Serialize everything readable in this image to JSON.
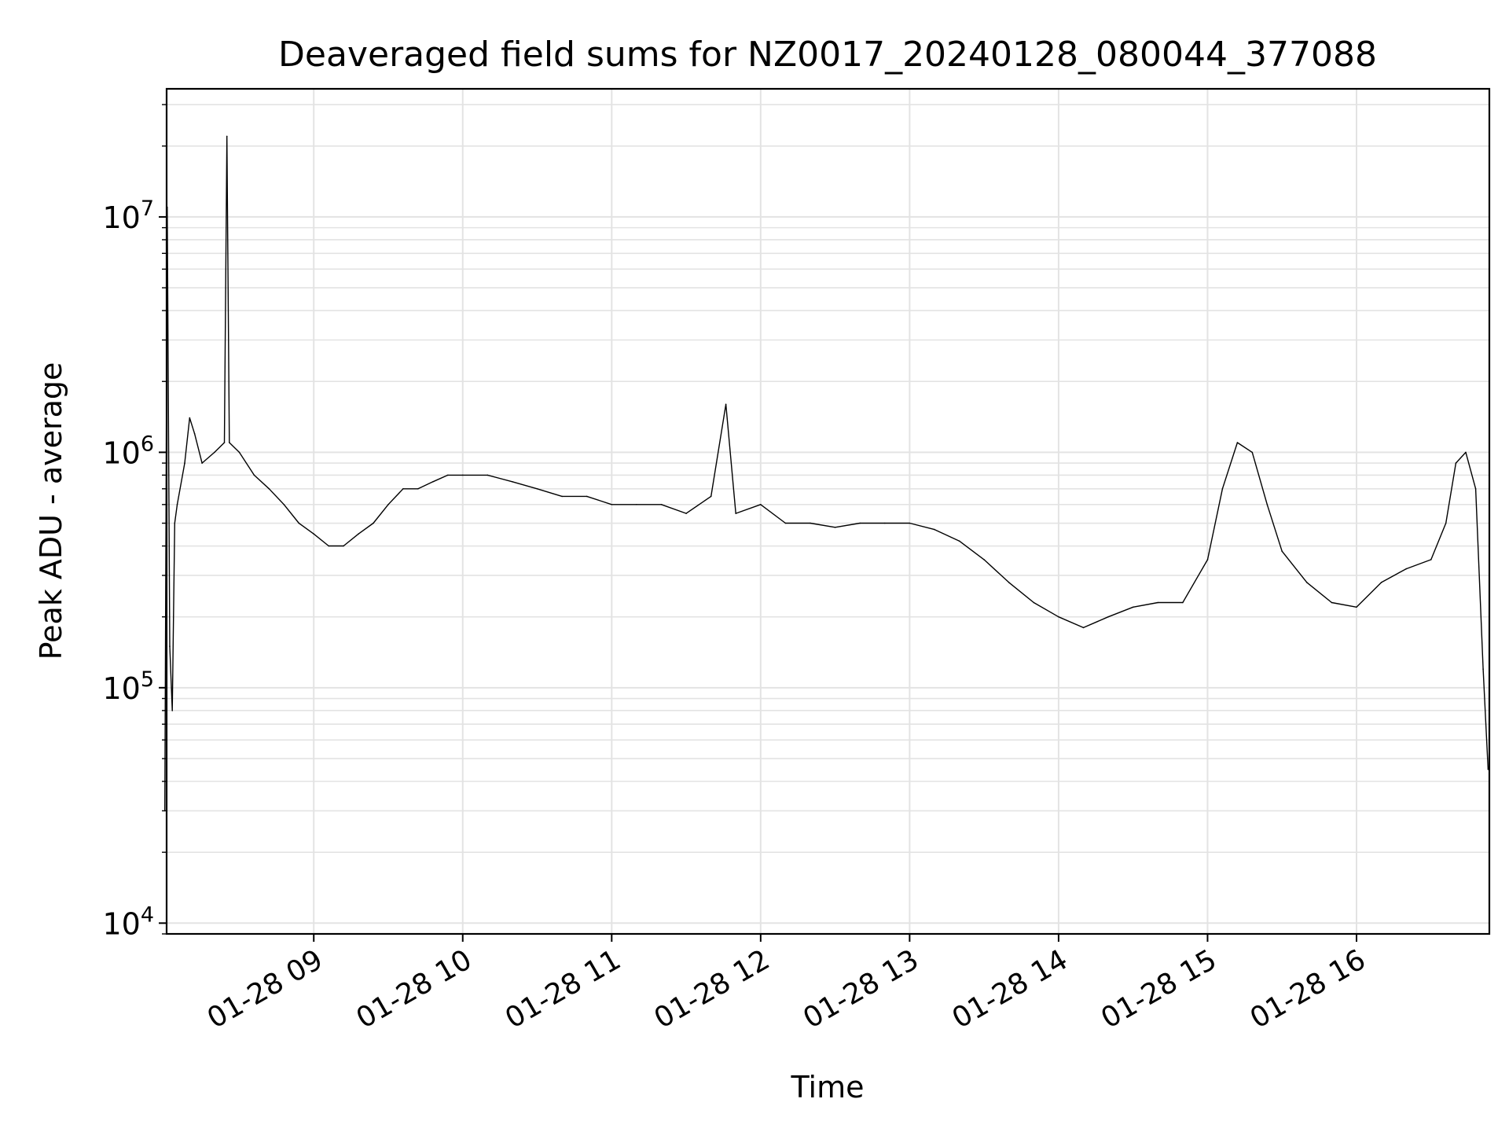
{
  "chart_data": {
    "type": "line",
    "title": "Deaveraged field sums for NZ0017_20240128_080044_377088",
    "xlabel": "Time",
    "ylabel": "Peak ADU - average",
    "y_scale": "log",
    "ylim": [
      9000,
      35000000
    ],
    "xlim": [
      "2024-01-28 08:00:44",
      "2024-01-28 16:53:30"
    ],
    "grid": true,
    "legend": "none",
    "line_color": "#000000",
    "grid_color": "#e3e3e3",
    "x_ticks": [
      {
        "value": "2024-01-28 09:00",
        "label": "01-28 09"
      },
      {
        "value": "2024-01-28 10:00",
        "label": "01-28 10"
      },
      {
        "value": "2024-01-28 11:00",
        "label": "01-28 11"
      },
      {
        "value": "2024-01-28 12:00",
        "label": "01-28 12"
      },
      {
        "value": "2024-01-28 13:00",
        "label": "01-28 13"
      },
      {
        "value": "2024-01-28 14:00",
        "label": "01-28 14"
      },
      {
        "value": "2024-01-28 15:00",
        "label": "01-28 15"
      },
      {
        "value": "2024-01-28 16:00",
        "label": "01-28 16"
      }
    ],
    "y_ticks": [
      {
        "value": 10000,
        "base": "10",
        "exp": "4"
      },
      {
        "value": 100000,
        "base": "10",
        "exp": "5"
      },
      {
        "value": 1000000,
        "base": "10",
        "exp": "6"
      },
      {
        "value": 10000000,
        "base": "10",
        "exp": "7"
      }
    ],
    "series": [
      {
        "x": [
          "2024-01-28 08:00",
          "2024-01-28 08:01",
          "2024-01-28 08:02",
          "2024-01-28 08:03",
          "2024-01-28 08:04",
          "2024-01-28 08:05",
          "2024-01-28 08:08",
          "2024-01-28 08:10",
          "2024-01-28 08:12",
          "2024-01-28 08:15",
          "2024-01-28 08:20",
          "2024-01-28 08:24",
          "2024-01-28 08:25",
          "2024-01-28 08:26",
          "2024-01-28 08:30",
          "2024-01-28 08:36",
          "2024-01-28 08:42",
          "2024-01-28 08:48",
          "2024-01-28 08:54",
          "2024-01-28 09:00",
          "2024-01-28 09:06",
          "2024-01-28 09:12",
          "2024-01-28 09:18",
          "2024-01-28 09:24",
          "2024-01-28 09:30",
          "2024-01-28 09:36",
          "2024-01-28 09:42",
          "2024-01-28 09:48",
          "2024-01-28 09:54",
          "2024-01-28 10:00",
          "2024-01-28 10:10",
          "2024-01-28 10:20",
          "2024-01-28 10:30",
          "2024-01-28 10:40",
          "2024-01-28 10:50",
          "2024-01-28 11:00",
          "2024-01-28 11:10",
          "2024-01-28 11:20",
          "2024-01-28 11:30",
          "2024-01-28 11:40",
          "2024-01-28 11:46",
          "2024-01-28 11:50",
          "2024-01-28 12:00",
          "2024-01-28 12:10",
          "2024-01-28 12:20",
          "2024-01-28 12:30",
          "2024-01-28 12:40",
          "2024-01-28 12:50",
          "2024-01-28 13:00",
          "2024-01-28 13:10",
          "2024-01-28 13:20",
          "2024-01-28 13:30",
          "2024-01-28 13:40",
          "2024-01-28 13:50",
          "2024-01-28 14:00",
          "2024-01-28 14:10",
          "2024-01-28 14:20",
          "2024-01-28 14:30",
          "2024-01-28 14:40",
          "2024-01-28 14:50",
          "2024-01-28 15:00",
          "2024-01-28 15:06",
          "2024-01-28 15:12",
          "2024-01-28 15:18",
          "2024-01-28 15:24",
          "2024-01-28 15:30",
          "2024-01-28 15:40",
          "2024-01-28 15:50",
          "2024-01-28 16:00",
          "2024-01-28 16:10",
          "2024-01-28 16:20",
          "2024-01-28 16:30",
          "2024-01-28 16:36",
          "2024-01-28 16:40",
          "2024-01-28 16:44",
          "2024-01-28 16:48",
          "2024-01-28 16:51",
          "2024-01-28 16:53"
        ],
        "values": [
          30000,
          11000000,
          150000,
          80000,
          500000,
          600000,
          900000,
          1400000,
          1200000,
          900000,
          1000000,
          1100000,
          22000000,
          1100000,
          1000000,
          800000,
          700000,
          600000,
          500000,
          450000,
          400000,
          400000,
          450000,
          500000,
          600000,
          700000,
          700000,
          750000,
          800000,
          800000,
          800000,
          750000,
          700000,
          650000,
          650000,
          600000,
          600000,
          600000,
          550000,
          650000,
          1600000,
          550000,
          600000,
          500000,
          500000,
          480000,
          500000,
          500000,
          500000,
          470000,
          420000,
          350000,
          280000,
          230000,
          200000,
          180000,
          200000,
          220000,
          230000,
          230000,
          350000,
          700000,
          1100000,
          1000000,
          600000,
          380000,
          280000,
          230000,
          220000,
          280000,
          320000,
          350000,
          500000,
          900000,
          1000000,
          700000,
          120000,
          45000
        ]
      }
    ]
  }
}
